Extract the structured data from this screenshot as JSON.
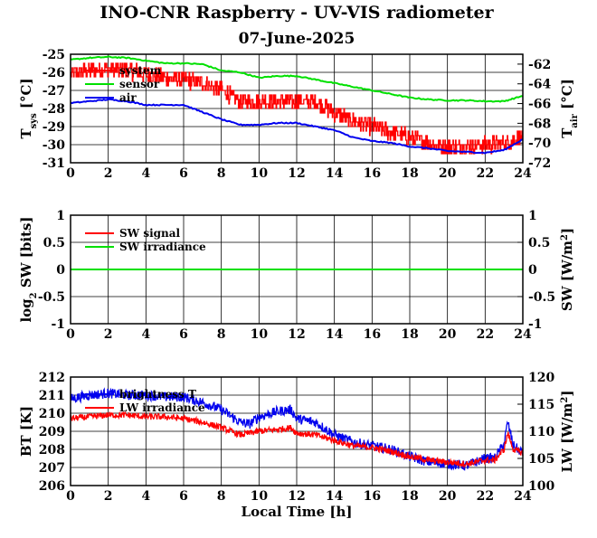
{
  "figure": {
    "title": "INO-CNR Raspberry - UV-VIS radiometer",
    "subtitle": "07-June-2025"
  },
  "chart_data": [
    {
      "type": "line",
      "panel": "temperature",
      "xlabel": "",
      "ylabel": "T",
      "ylabel_sub": "sys",
      "ylabel_unit": "[°C]",
      "ylabel_right": "T",
      "ylabel_right_sub": "air",
      "ylabel_right_unit": "[°C]",
      "xlim": [
        0,
        24
      ],
      "ylim": [
        -31,
        -25
      ],
      "ylim_right": [
        -72,
        -61
      ],
      "xticks": [
        "0",
        "2",
        "4",
        "6",
        "8",
        "10",
        "12",
        "14",
        "16",
        "18",
        "20",
        "22",
        "24"
      ],
      "yticks": [
        "-25",
        "-26",
        "-27",
        "-28",
        "-29",
        "-30",
        "-31"
      ],
      "yticks_right": [
        "-62",
        "-64",
        "-66",
        "-68",
        "-70",
        "-72"
      ],
      "grid": true,
      "legend_position": "top-left",
      "series": [
        {
          "name": "system",
          "color": "#ff0000",
          "axis": "left",
          "style": "noisy-step",
          "x": [
            0,
            1,
            2,
            3,
            4,
            5,
            6,
            7,
            8,
            9,
            10,
            11,
            12,
            13,
            14,
            15,
            16,
            17,
            18,
            19,
            20,
            21,
            22,
            23,
            24
          ],
          "y": [
            -26.1,
            -25.9,
            -25.8,
            -25.9,
            -26.1,
            -26.3,
            -26.4,
            -26.6,
            -27.0,
            -27.6,
            -27.6,
            -27.6,
            -27.6,
            -27.6,
            -28.2,
            -28.7,
            -29.0,
            -29.3,
            -29.6,
            -29.9,
            -30.1,
            -30.1,
            -30.0,
            -29.9,
            -29.6
          ]
        },
        {
          "name": "sensor",
          "color": "#00e000",
          "axis": "left",
          "style": "smooth",
          "x": [
            0,
            1,
            2,
            3,
            4,
            5,
            6,
            7,
            8,
            9,
            10,
            11,
            12,
            13,
            14,
            15,
            16,
            17,
            18,
            19,
            20,
            21,
            22,
            23,
            24
          ],
          "y": [
            -25.3,
            -25.2,
            -25.15,
            -25.2,
            -25.35,
            -25.5,
            -25.5,
            -25.55,
            -25.9,
            -26.0,
            -26.3,
            -26.2,
            -26.2,
            -26.4,
            -26.6,
            -26.8,
            -27.0,
            -27.2,
            -27.4,
            -27.5,
            -27.55,
            -27.55,
            -27.6,
            -27.6,
            -27.3
          ]
        },
        {
          "name": "air",
          "color": "#0000ee",
          "axis": "left",
          "style": "smooth",
          "x": [
            0,
            1,
            2,
            3,
            4,
            5,
            6,
            7,
            8,
            9,
            10,
            11,
            12,
            13,
            14,
            15,
            16,
            17,
            18,
            19,
            20,
            21,
            22,
            23,
            24
          ],
          "y": [
            -27.7,
            -27.6,
            -27.5,
            -27.6,
            -27.8,
            -27.8,
            -27.8,
            -28.2,
            -28.6,
            -28.9,
            -28.9,
            -28.8,
            -28.8,
            -29.0,
            -29.2,
            -29.6,
            -29.8,
            -29.9,
            -30.1,
            -30.2,
            -30.35,
            -30.4,
            -30.45,
            -30.3,
            -29.7
          ]
        }
      ]
    },
    {
      "type": "line",
      "panel": "shortwave",
      "xlabel": "",
      "ylabel": "log",
      "ylabel_sub": "2",
      "ylabel_unit": "SW [bits]",
      "ylabel_right": "SW [W/m",
      "ylabel_right_sup": "2",
      "ylabel_right_end": "]",
      "xlim": [
        0,
        24
      ],
      "ylim": [
        -1,
        1
      ],
      "ylim_right": [
        -1,
        1
      ],
      "xticks": [
        "0",
        "2",
        "4",
        "6",
        "8",
        "10",
        "12",
        "14",
        "16",
        "18",
        "20",
        "22",
        "24"
      ],
      "yticks": [
        "1",
        "0.5",
        "0",
        "-0.5",
        "-1"
      ],
      "yticks_right": [
        "1",
        "0.5",
        "0",
        "-0.5",
        "-1"
      ],
      "grid": true,
      "legend_position": "top-left",
      "series": [
        {
          "name": "SW signal",
          "color": "#ff0000",
          "axis": "left",
          "x": [
            0,
            24
          ],
          "y": [
            0,
            0
          ]
        },
        {
          "name": "SW irradiance",
          "color": "#00e000",
          "axis": "left",
          "x": [
            0,
            24
          ],
          "y": [
            0,
            0
          ]
        }
      ]
    },
    {
      "type": "line",
      "panel": "longwave",
      "xlabel": "Local Time [h]",
      "ylabel": "BT [K]",
      "ylabel_right": "LW [W/m",
      "ylabel_right_sup": "2",
      "ylabel_right_end": "]",
      "xlim": [
        0,
        24
      ],
      "ylim": [
        206,
        212
      ],
      "ylim_right": [
        100,
        120
      ],
      "xticks": [
        "0",
        "2",
        "4",
        "6",
        "8",
        "10",
        "12",
        "14",
        "16",
        "18",
        "20",
        "22",
        "24"
      ],
      "yticks": [
        "212",
        "211",
        "210",
        "209",
        "208",
        "207",
        "206"
      ],
      "yticks_right": [
        "120",
        "115",
        "110",
        "105",
        "100"
      ],
      "grid": true,
      "legend_position": "top-left",
      "series": [
        {
          "name": "brightness T",
          "color": "#0000ee",
          "axis": "left",
          "style": "noisy",
          "x": [
            0,
            1,
            2,
            3,
            4,
            5,
            6,
            7,
            8,
            9,
            9.5,
            10,
            11,
            11.7,
            12,
            13,
            14,
            15,
            16,
            17,
            18,
            19,
            20,
            21,
            22,
            22.5,
            23,
            23.2,
            23.5,
            24
          ],
          "y": [
            210.8,
            211.0,
            211.1,
            211.0,
            211.0,
            210.9,
            210.9,
            210.6,
            210.2,
            209.5,
            209.4,
            209.8,
            210.1,
            210.2,
            209.7,
            209.5,
            208.8,
            208.4,
            208.2,
            208.0,
            207.6,
            207.3,
            207.2,
            207.1,
            207.5,
            207.5,
            208.3,
            209.5,
            208.2,
            207.8
          ]
        },
        {
          "name": "LW irradiance",
          "color": "#ff0000",
          "axis": "left",
          "style": "noisy",
          "x": [
            0,
            1,
            2,
            3,
            4,
            5,
            6,
            7,
            8,
            9,
            9.5,
            10,
            11,
            11.7,
            12,
            13,
            14,
            15,
            16,
            17,
            18,
            19,
            20,
            21,
            22,
            22.5,
            23,
            23.2,
            23.5,
            24
          ],
          "y": [
            209.7,
            209.8,
            209.9,
            209.9,
            209.8,
            209.8,
            209.7,
            209.5,
            209.2,
            208.8,
            208.9,
            209.0,
            209.1,
            209.2,
            208.9,
            208.8,
            208.5,
            208.2,
            208.1,
            207.9,
            207.6,
            207.4,
            207.3,
            207.2,
            207.4,
            207.4,
            208.0,
            208.9,
            208.0,
            207.8
          ]
        }
      ]
    }
  ]
}
